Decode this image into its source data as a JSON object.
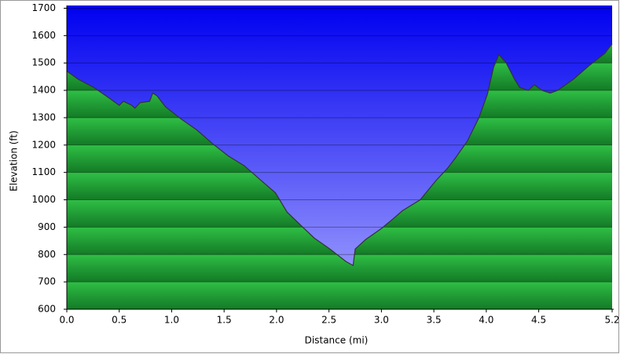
{
  "chart_data": {
    "type": "area",
    "x_label": "Distance   (mi)",
    "y_label": "Elevation (ft)",
    "xlim": [
      0,
      5.2
    ],
    "ylim": [
      600,
      1710
    ],
    "xticks": [
      {
        "value": 0,
        "label": "0.0"
      },
      {
        "value": 0.5,
        "label": "0.5"
      },
      {
        "value": 1,
        "label": "1.0"
      },
      {
        "value": 1.5,
        "label": "1.5"
      },
      {
        "value": 2,
        "label": "2.0"
      },
      {
        "value": 2.5,
        "label": "2.5"
      },
      {
        "value": 3,
        "label": "3.0"
      },
      {
        "value": 3.5,
        "label": "3.5"
      },
      {
        "value": 4,
        "label": "4.0"
      },
      {
        "value": 4.5,
        "label": "4.5"
      },
      {
        "value": 5.2,
        "label": "5.2"
      }
    ],
    "yticks": [
      600,
      700,
      800,
      900,
      1000,
      1100,
      1200,
      1300,
      1400,
      1500,
      1600,
      1700
    ],
    "grid": true,
    "x": [
      0,
      0.11,
      0.26,
      0.41,
      0.5,
      0.54,
      0.62,
      0.65,
      0.7,
      0.79,
      0.82,
      0.86,
      0.94,
      1.09,
      1.24,
      1.39,
      1.54,
      1.69,
      1.84,
      1.99,
      2.1,
      2.25,
      2.36,
      2.51,
      2.66,
      2.73,
      2.75,
      2.85,
      3.0,
      3.11,
      3.2,
      3.37,
      3.52,
      3.63,
      3.71,
      3.82,
      3.93,
      4.01,
      4.07,
      4.12,
      4.19,
      4.27,
      4.32,
      4.4,
      4.46,
      4.53,
      4.61,
      4.68,
      4.83,
      4.98,
      5.13,
      5.2
    ],
    "series": [
      {
        "color": "#1e9e34",
        "values": [
          1470,
          1440,
          1410,
          1370,
          1345,
          1360,
          1345,
          1335,
          1355,
          1360,
          1390,
          1380,
          1340,
          1295,
          1255,
          1205,
          1160,
          1125,
          1075,
          1025,
          955,
          900,
          860,
          820,
          775,
          760,
          820,
          855,
          895,
          930,
          960,
          1000,
          1070,
          1115,
          1155,
          1215,
          1300,
          1385,
          1485,
          1530,
          1500,
          1440,
          1410,
          1400,
          1420,
          1400,
          1390,
          1400,
          1440,
          1490,
          1535,
          1570
        ]
      }
    ]
  }
}
